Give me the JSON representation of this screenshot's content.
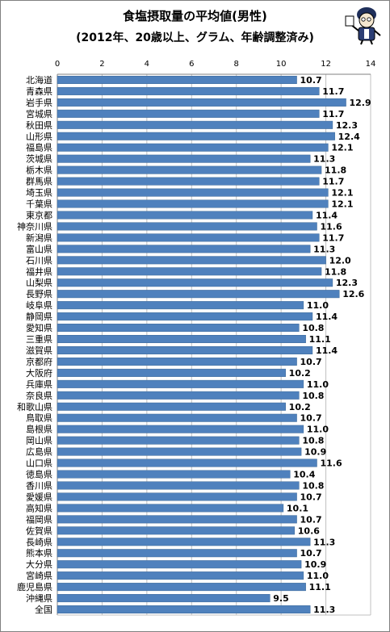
{
  "header": {
    "title": "食塩摂取量の平均値(男性)",
    "subtitle": "(2012年、20歳以上、グラム、年齢調整済み)"
  },
  "colors": {
    "bar": "#4f81bd",
    "bar_edge": "#3a6796",
    "grid": "#c0c0c0",
    "axis": "#808080"
  },
  "chart_data": {
    "type": "bar",
    "orientation": "horizontal",
    "xlim": [
      0,
      14
    ],
    "xticks": [
      0,
      2,
      4,
      6,
      8,
      10,
      12,
      14
    ],
    "x_axis_position": "top",
    "grid": true,
    "categories": [
      "北海道",
      "青森県",
      "岩手県",
      "宮城県",
      "秋田県",
      "山形県",
      "福島県",
      "茨城県",
      "栃木県",
      "群馬県",
      "埼玉県",
      "千葉県",
      "東京都",
      "神奈川県",
      "新潟県",
      "富山県",
      "石川県",
      "福井県",
      "山梨県",
      "長野県",
      "岐阜県",
      "静岡県",
      "愛知県",
      "三重県",
      "滋賀県",
      "京都府",
      "大阪府",
      "兵庫県",
      "奈良県",
      "和歌山県",
      "鳥取県",
      "島根県",
      "岡山県",
      "広島県",
      "山口県",
      "徳島県",
      "香川県",
      "愛媛県",
      "高知県",
      "福岡県",
      "佐賀県",
      "長崎県",
      "熊本県",
      "大分県",
      "宮崎県",
      "鹿児島県",
      "沖縄県",
      "全国"
    ],
    "values": [
      10.7,
      11.7,
      12.9,
      11.7,
      12.3,
      12.4,
      12.1,
      11.3,
      11.8,
      11.7,
      12.1,
      12.1,
      11.4,
      11.6,
      11.7,
      11.3,
      12.0,
      11.8,
      12.3,
      12.6,
      11.0,
      11.4,
      10.8,
      11.1,
      11.4,
      10.7,
      10.2,
      11.0,
      10.8,
      10.2,
      10.7,
      11.0,
      10.8,
      10.9,
      11.6,
      10.4,
      10.8,
      10.7,
      10.1,
      10.7,
      10.6,
      11.3,
      10.7,
      10.9,
      11.0,
      11.1,
      9.5,
      11.3
    ],
    "value_labels": [
      "10.7",
      "11.7",
      "12.9",
      "11.7",
      "12.3",
      "12.4",
      "12.1",
      "11.3",
      "11.8",
      "11.7",
      "12.1",
      "12.1",
      "11.4",
      "11.6",
      "11.7",
      "11.3",
      "12.0",
      "11.8",
      "12.3",
      "12.6",
      "11.0",
      "11.4",
      "10.8",
      "11.1",
      "11.4",
      "10.7",
      "10.2",
      "11.0",
      "10.8",
      "10.2",
      "10.7",
      "11.0",
      "10.8",
      "10.9",
      "11.6",
      "10.4",
      "10.8",
      "10.7",
      "10.1",
      "10.7",
      "10.6",
      "11.3",
      "10.7",
      "10.9",
      "11.0",
      "11.1",
      "9.5",
      "11.3"
    ]
  }
}
